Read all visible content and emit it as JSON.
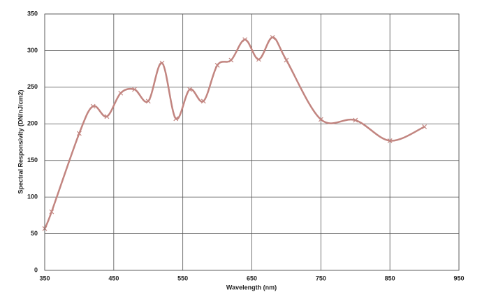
{
  "chart_data": {
    "type": "line",
    "x_label": "Wavelength (nm)",
    "y_label": "Spectral Responsivity (DN/nJ/cm2)",
    "x": [
      350,
      360,
      400,
      420,
      440,
      460,
      480,
      500,
      520,
      540,
      560,
      580,
      600,
      620,
      640,
      660,
      680,
      700,
      750,
      800,
      850,
      900
    ],
    "series": [
      {
        "color": "#c28580",
        "values": [
          57,
          80,
          187,
          224,
          210,
          242,
          247,
          231,
          283,
          207,
          247,
          231,
          280,
          287,
          315,
          288,
          318,
          287,
          206,
          205,
          177,
          196
        ]
      }
    ],
    "xlim": [
      350,
      950
    ],
    "xticks": [
      350,
      450,
      550,
      650,
      750,
      850,
      950
    ],
    "ylim": [
      0,
      350
    ],
    "yticks": [
      0,
      50,
      100,
      150,
      200,
      250,
      300,
      350
    ],
    "grid": true,
    "smooth": true,
    "marker": "x"
  }
}
